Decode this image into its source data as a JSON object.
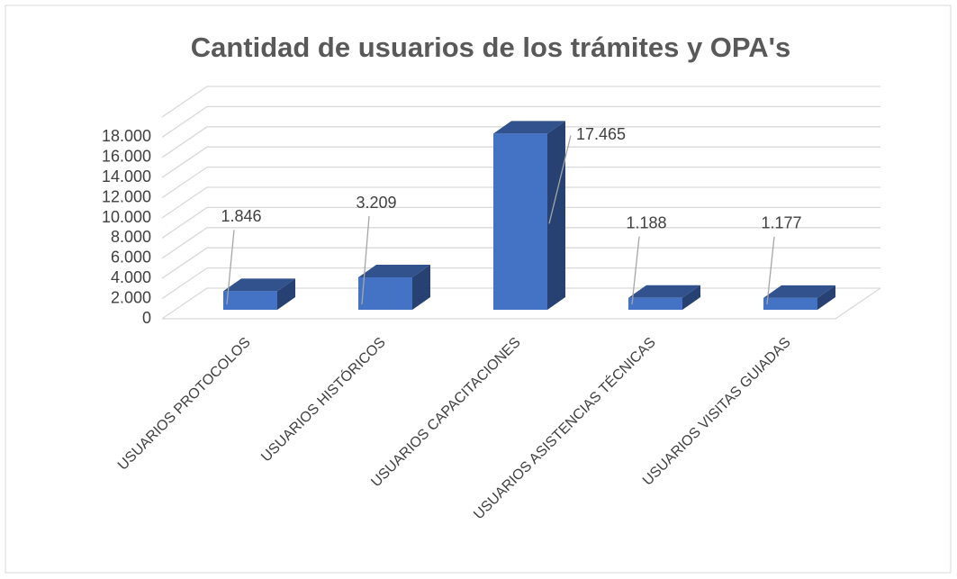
{
  "chart_data": {
    "type": "bar3d",
    "title": "Cantidad de usuarios de los trámites y OPA's",
    "categories": [
      "USUARIOS PROTOCOLOS",
      "USUARIOS HISTÓRICOS",
      "USUARIOS CAPACITACIONES",
      "USUARIOS ASISTENCIAS TÉCNICAS",
      "USUARIOS VISITAS GUIADAS"
    ],
    "values": [
      1846,
      3209,
      17465,
      1188,
      1177
    ],
    "value_labels": [
      "1.846",
      "3.209",
      "17.465",
      "1.188",
      "1.177"
    ],
    "color": "#4472c4",
    "ylim": [
      0,
      20000
    ],
    "yticks": [
      0,
      {
        "value": 2000,
        "label": "2.000"
      },
      {
        "value": 4000,
        "label": "4.000"
      },
      {
        "value": 6000,
        "label": "6.000"
      },
      {
        "value": 8000,
        "label": "8.000"
      },
      {
        "value": 10000,
        "label": "10.000"
      },
      {
        "value": 12000,
        "label": "12.000"
      },
      {
        "value": 14000,
        "label": "14.000"
      },
      {
        "value": 16000,
        "label": "16.000"
      },
      {
        "value": 18000,
        "label": "18.000"
      }
    ],
    "grid": true
  }
}
